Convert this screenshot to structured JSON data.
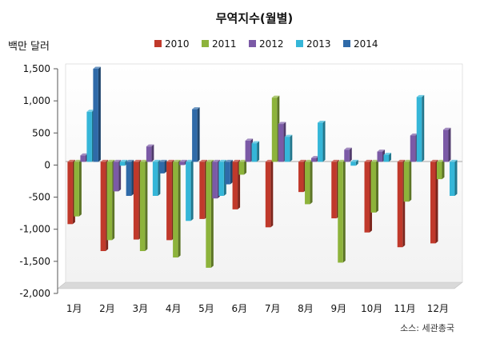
{
  "chart_data": {
    "type": "bar",
    "title": "무역지수(월별)",
    "ylabel": "백만 달러",
    "source": "소스: 세관총국",
    "ylim": [
      -2000,
      1500
    ],
    "yticks": [
      1500,
      1000,
      500,
      0,
      -500,
      -1000,
      -1500,
      -2000
    ],
    "ytick_labels": [
      "1,500",
      "1,000",
      "500",
      "0",
      "-500",
      "-1,000",
      "-1,500",
      "-2,000"
    ],
    "categories": [
      "1月",
      "2月",
      "3月",
      "4月",
      "5月",
      "6月",
      "7月",
      "8月",
      "9月",
      "10月",
      "11月",
      "12月"
    ],
    "legend_position": "top",
    "grid": false,
    "series": [
      {
        "name": "2010",
        "color": "#c0392b",
        "values": [
          -970,
          -1390,
          -1210,
          -1220,
          -890,
          -740,
          -1020,
          -470,
          -880,
          -1100,
          -1330,
          -1270
        ]
      },
      {
        "name": "2011",
        "color": "#8db33b",
        "values": [
          -850,
          -1220,
          -1390,
          -1490,
          -1650,
          -200,
          1000,
          -660,
          -1570,
          -790,
          -620,
          -270
        ]
      },
      {
        "name": "2012",
        "color": "#7b5aa6",
        "values": [
          100,
          -460,
          240,
          -50,
          -570,
          330,
          590,
          60,
          190,
          160,
          410,
          500
        ]
      },
      {
        "name": "2013",
        "color": "#35b6d8",
        "values": [
          780,
          -60,
          -530,
          -920,
          -530,
          290,
          390,
          610,
          -60,
          110,
          1010,
          -530
        ]
      },
      {
        "name": "2014",
        "color": "#2f6aa8",
        "values": [
          1450,
          -530,
          -180,
          820,
          -350,
          0,
          0,
          0,
          0,
          0,
          0,
          0
        ]
      }
    ]
  }
}
